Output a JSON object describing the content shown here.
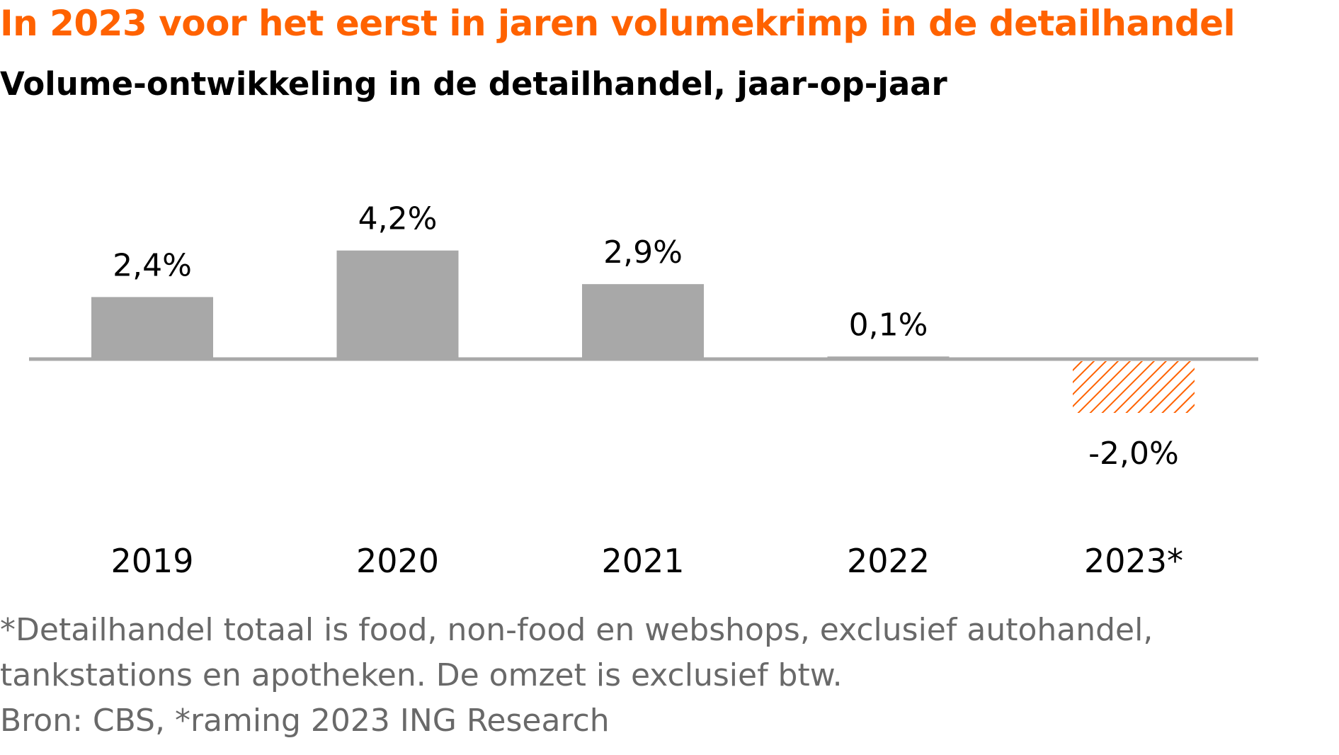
{
  "title": "In 2023 voor het eerst in jaren volumekrimp in de detailhandel",
  "subtitle": "Volume-ontwikkeling in de detailhandel, jaar-op-jaar",
  "colors": {
    "title": "#ff6200",
    "bar": "#a8a8a8",
    "forecast": "#ff6200",
    "axis": "#a8a8a8",
    "notes": "#696969"
  },
  "chart_data": {
    "type": "bar",
    "categories": [
      "2019",
      "2020",
      "2021",
      "2022",
      "2023*"
    ],
    "values": [
      2.4,
      4.2,
      2.9,
      0.1,
      -2.0
    ],
    "labels": [
      "2,4%",
      "4,2%",
      "2,9%",
      "0,1%",
      "-2,0%"
    ],
    "forecast": [
      false,
      false,
      false,
      false,
      true
    ],
    "ylim": [
      -2.0,
      4.2
    ],
    "grid": false,
    "legend": "none"
  },
  "notes": [
    "*Detailhandel totaal is food, non-food en webshops, exclusief autohandel,",
    "tankstations en apotheken. De omzet is exclusief btw.",
    "Bron: CBS, *raming 2023 ING Research"
  ]
}
